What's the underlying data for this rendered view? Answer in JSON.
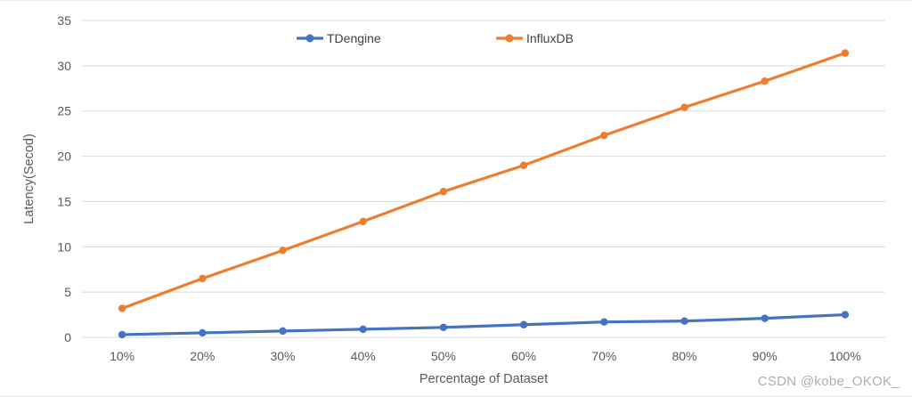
{
  "chart_data": {
    "type": "line",
    "title": "",
    "categories": [
      "10%",
      "20%",
      "30%",
      "40%",
      "50%",
      "60%",
      "70%",
      "80%",
      "90%",
      "100%"
    ],
    "series": [
      {
        "name": "TDengine",
        "color": "#4472C4",
        "values": [
          0.3,
          0.5,
          0.7,
          0.9,
          1.1,
          1.4,
          1.7,
          1.8,
          2.1,
          2.5
        ]
      },
      {
        "name": "InfluxDB",
        "color": "#ED7D31",
        "values": [
          3.2,
          6.5,
          9.6,
          12.8,
          16.1,
          19.0,
          22.3,
          25.4,
          28.3,
          31.4
        ]
      }
    ],
    "xlabel": "Percentage of Dataset",
    "ylabel": "Latency(Secod)",
    "ylim": [
      0,
      35
    ],
    "ytick_step": 5,
    "ytick_labels": [
      "0",
      "5",
      "10",
      "15",
      "20",
      "25",
      "30",
      "35"
    ],
    "grid": true,
    "legend_position": "top",
    "gridline_color": "#D9D9D9",
    "axis_text_color": "#595959",
    "legend_text_color": "#404040"
  },
  "watermark": "CSDN @kobe_OKOK_"
}
